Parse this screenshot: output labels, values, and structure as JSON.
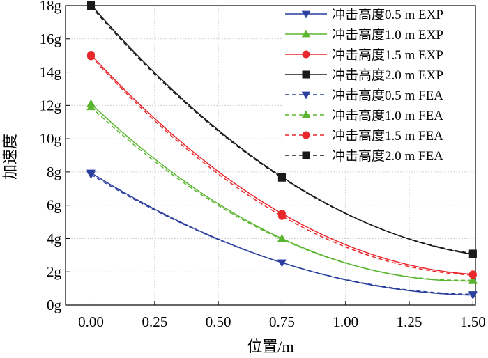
{
  "chart_data": {
    "type": "line",
    "xlabel": "位置/m",
    "ylabel": "加速度",
    "xlim": [
      -0.1,
      1.51
    ],
    "ylim": [
      0,
      18
    ],
    "x_ticks": [
      0.0,
      0.25,
      0.5,
      0.75,
      1.0,
      1.25,
      1.5
    ],
    "x_tick_labels": [
      "0.00",
      "0.25",
      "0.50",
      "0.75",
      "1.00",
      "1.25",
      "1.50"
    ],
    "y_ticks": [
      0,
      2,
      4,
      6,
      8,
      10,
      12,
      14,
      16,
      18
    ],
    "y_tick_labels": [
      "0g",
      "2g",
      "4g",
      "6g",
      "8g",
      "10g",
      "12g",
      "14g",
      "16g",
      "18g"
    ],
    "legend_position": "top-right",
    "series": [
      {
        "name": "冲击高度0.5 m EXP",
        "color": "#2b3f9e",
        "marker": "triangle-down",
        "dash": false,
        "x": [
          0,
          0.75,
          1.5
        ],
        "y": [
          7.95,
          2.55,
          0.6
        ]
      },
      {
        "name": "冲击高度1.0 m EXP",
        "color": "#5ab52f",
        "marker": "triangle-up",
        "dash": false,
        "x": [
          0,
          0.75,
          1.5
        ],
        "y": [
          12.1,
          4.0,
          1.45
        ]
      },
      {
        "name": "冲击高度1.5 m EXP",
        "color": "#e8282b",
        "marker": "circle",
        "dash": false,
        "x": [
          0,
          0.75,
          1.5
        ],
        "y": [
          15.05,
          5.5,
          1.85
        ]
      },
      {
        "name": "冲击高度2.0 m EXP",
        "color": "#1a1a1a",
        "marker": "square",
        "dash": false,
        "x": [
          0,
          0.75,
          1.5
        ],
        "y": [
          18.05,
          7.7,
          3.05
        ]
      },
      {
        "name": "冲击高度0.5 m FEA",
        "color": "#2b3f9e",
        "marker": "triangle-down",
        "dash": true,
        "x": [
          0,
          0.75,
          1.5
        ],
        "y": [
          7.85,
          2.55,
          0.65
        ]
      },
      {
        "name": "冲击高度1.0 m FEA",
        "color": "#5ab52f",
        "marker": "triangle-up",
        "dash": true,
        "x": [
          0,
          0.75,
          1.5
        ],
        "y": [
          11.9,
          3.95,
          1.5
        ]
      },
      {
        "name": "冲击高度1.5 m FEA",
        "color": "#e8282b",
        "marker": "circle",
        "dash": true,
        "x": [
          0,
          0.75,
          1.5
        ],
        "y": [
          14.95,
          5.35,
          1.8
        ]
      },
      {
        "name": "冲击高度2.0 m FEA",
        "color": "#1a1a1a",
        "marker": "square",
        "dash": true,
        "x": [
          0,
          0.75,
          1.5
        ],
        "y": [
          17.95,
          7.65,
          3.1
        ]
      }
    ]
  }
}
